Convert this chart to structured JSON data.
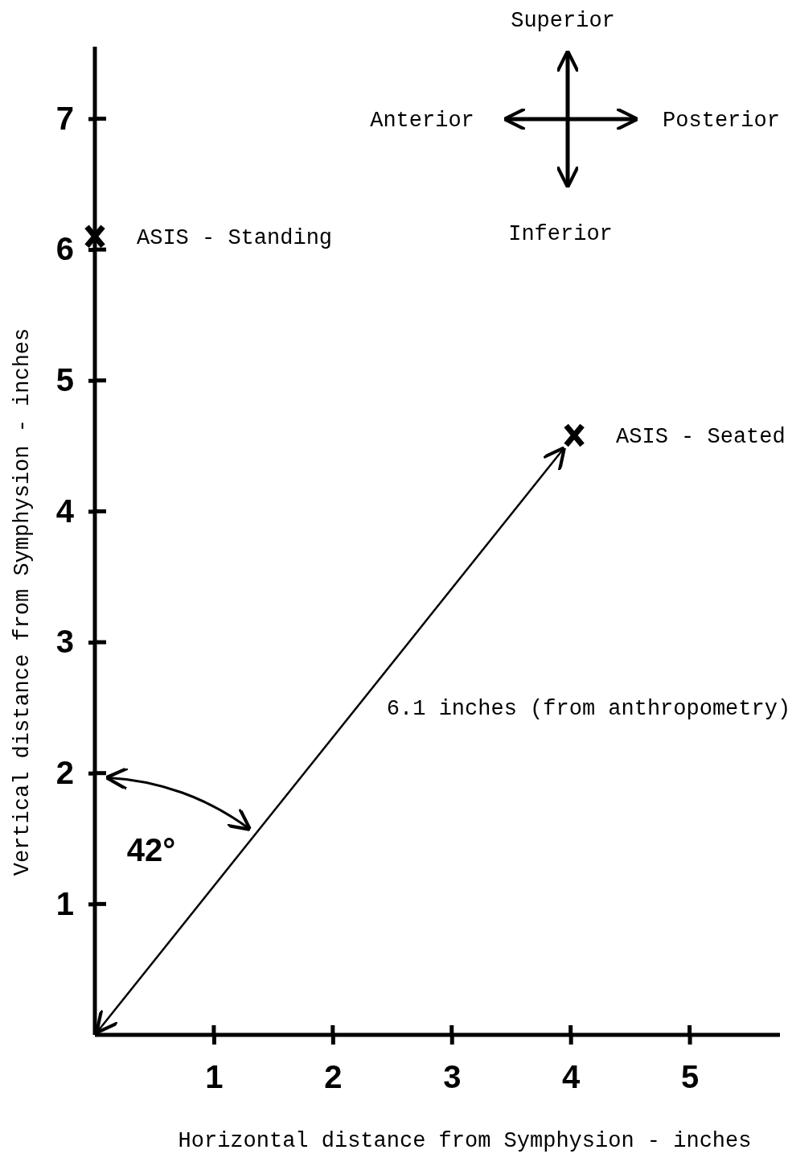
{
  "chart_data": {
    "type": "scatter",
    "xlabel": "Horizontal distance from Symphysion - inches",
    "ylabel": "Vertical distance from Symphysion - inches",
    "xlim": [
      0,
      5.76
    ],
    "ylim": [
      0,
      7.55
    ],
    "xticks": [
      1,
      2,
      3,
      4,
      5
    ],
    "yticks": [
      1,
      2,
      3,
      4,
      5,
      6,
      7
    ],
    "grid": false,
    "legend": false,
    "marker": "cross",
    "series": [
      {
        "name": "ASIS - Standing",
        "color": "#000000",
        "x": [
          0
        ],
        "values": [
          6.1
        ]
      },
      {
        "name": "ASIS - Seated",
        "color": "#000000",
        "x": [
          4.03
        ],
        "values": [
          4.58
        ]
      }
    ],
    "annotations": [
      "6.1 inches (from anthropometry)",
      "42°",
      "Superior",
      "Anterior",
      "Posterior",
      "Inferior"
    ]
  }
}
